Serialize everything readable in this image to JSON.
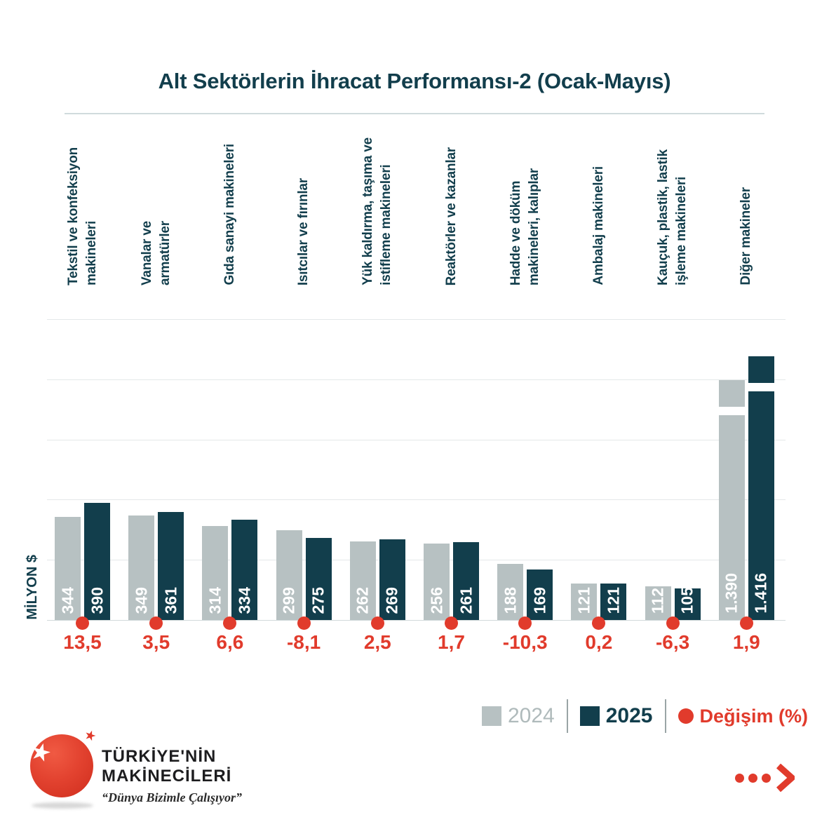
{
  "title": "Alt Sektörlerin İhracat Performansı-2 (Ocak-Mayıs)",
  "chart_data": {
    "type": "bar",
    "title": "Alt Sektörlerin İhracat Performansı-2 (Ocak-Mayıs)",
    "ylabel": "MİLYON $",
    "grid": true,
    "legend_position": "bottom-right",
    "categories": [
      "Tekstil ve konfeksiyon\nmakineleri",
      "Vanalar ve\narmatürler",
      "Gıda sanayi makineleri",
      "Isıtcılar ve fırınlar",
      "Yük kaldırma, taşıma ve\nistifleme makineleri",
      "Reaktörler ve kazanlar",
      "Hadde ve döküm\nmakineleri, kalıplar",
      "Ambalaj makineleri",
      "Kauçuk, plastik, lastik\nişleme makineleri",
      "Diğer makineler"
    ],
    "series": [
      {
        "name": "2024",
        "values": [
          344,
          349,
          314,
          299,
          262,
          256,
          188,
          121,
          112,
          1390
        ],
        "value_labels": [
          "344",
          "349",
          "314",
          "299",
          "262",
          "256",
          "188",
          "121",
          "112",
          "1.390"
        ]
      },
      {
        "name": "2025",
        "values": [
          390,
          361,
          334,
          275,
          269,
          261,
          169,
          121,
          105,
          1416
        ],
        "value_labels": [
          "390",
          "361",
          "334",
          "275",
          "269",
          "261",
          "169",
          "121",
          "105",
          "1.416"
        ]
      }
    ],
    "change_percent": {
      "name": "Değişim (%)",
      "values": [
        13.5,
        3.5,
        6.6,
        -8.1,
        2.5,
        1.7,
        -10.3,
        0.2,
        -6.3,
        1.9
      ],
      "labels": [
        "13,5",
        "3,5",
        "6,6",
        "-8,1",
        "2,5",
        "1,7",
        "-10,3",
        "0,2",
        "-6,3",
        "1,9"
      ]
    },
    "axis_break_category": "Diğer makineler"
  },
  "legend": {
    "items": [
      {
        "label": "2024",
        "swatch": "square",
        "color_key": "gray"
      },
      {
        "label": "2025",
        "swatch": "square",
        "color_key": "teal"
      },
      {
        "label": "Değişim (%)",
        "swatch": "dot",
        "color_key": "red"
      }
    ]
  },
  "brand": {
    "line1": "TÜRKİYE'NİN",
    "line2": "MAKİNECİLERİ",
    "tagline": "“Dünya Bizimle Çalışıyor”"
  },
  "colors": {
    "teal": "#123E4C",
    "gray": "#B7C1C2",
    "red": "#E13B2C",
    "grid": "#E4E8E9",
    "baseline": "#D2DADB",
    "separator": "#D0DBDD",
    "legend-gray-text": "#AFBABB",
    "ink": "#1D1D1F"
  }
}
